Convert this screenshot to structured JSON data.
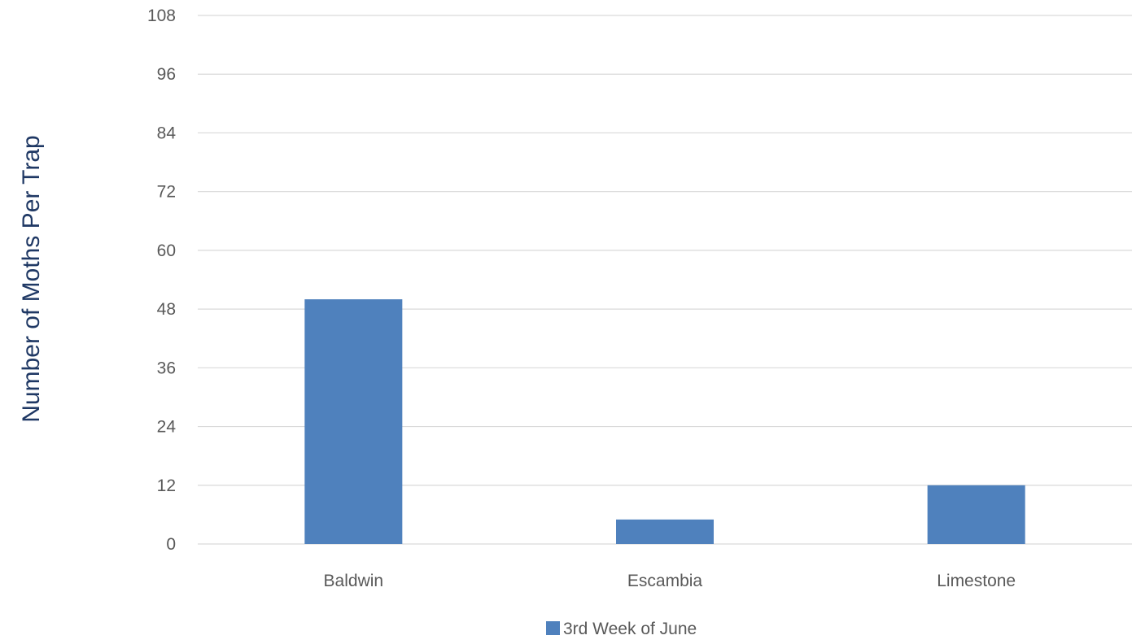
{
  "chart_data": {
    "type": "bar",
    "title": "",
    "xlabel": "",
    "ylabel": "Number of Moths Per Trap",
    "categories": [
      "Baldwin",
      "Escambia",
      "Limestone"
    ],
    "series": [
      {
        "name": "3rd Week of June",
        "values": [
          50,
          5,
          12
        ],
        "color": "#4F81BD"
      }
    ],
    "ylim": [
      0,
      108
    ],
    "yticks": [
      0,
      12,
      24,
      36,
      48,
      60,
      72,
      84,
      96,
      108
    ],
    "grid": true,
    "legend_position": "bottom",
    "colors": {
      "bar": "#4F81BD",
      "gridline": "#D9D9D9",
      "tick_label": "#595959",
      "axis_title": "#1F3864"
    }
  }
}
